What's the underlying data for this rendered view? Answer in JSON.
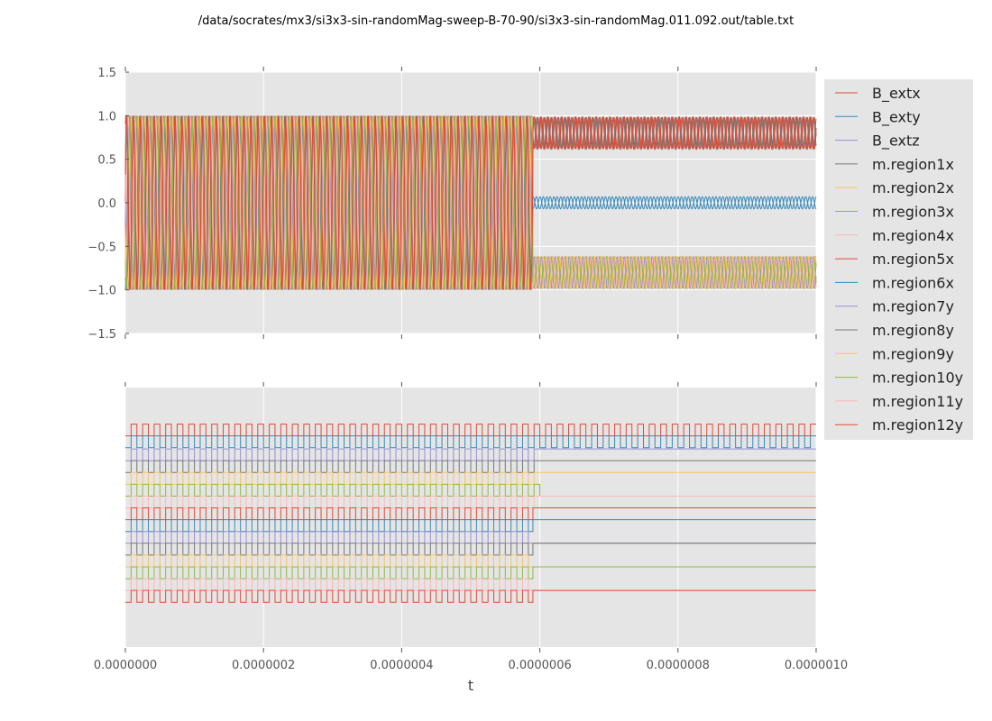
{
  "chart_data": [
    {
      "type": "line",
      "title": "/data/socrates/mx3/si3x3-sin-randomMag-sweep-B-70-90/si3x3-sin-randomMag.011.092.out/table.txt",
      "xlabel": "",
      "ylabel": "",
      "xlim": [
        0,
        1e-06
      ],
      "ylim": [
        -1.5,
        1.5
      ],
      "yticks": [
        {
          "value": 1.5,
          "label": "1.5"
        },
        {
          "value": 1.0,
          "label": "1.0"
        },
        {
          "value": 0.5,
          "label": "0.5"
        },
        {
          "value": 0.0,
          "label": "0.0"
        },
        {
          "value": -0.5,
          "label": "−0.5"
        },
        {
          "value": -1.0,
          "label": "−1.0"
        },
        {
          "value": -1.5,
          "label": "−1.5"
        }
      ],
      "grid": true,
      "switch_time": 5.9e-07,
      "oscillation_cycles": 100,
      "series": [
        {
          "name": "B_extx",
          "color": "#E24A33",
          "before": [
            -1,
            1
          ],
          "after": [
            0.62,
            0.98
          ]
        },
        {
          "name": "B_exty",
          "color": "#348ABD",
          "before": [
            -1,
            1
          ],
          "after": [
            -0.07,
            0.07
          ]
        },
        {
          "name": "B_extz",
          "color": "#988ED5",
          "before": [
            -1,
            1
          ],
          "after": [
            -0.98,
            -0.62
          ]
        },
        {
          "name": "m.region1x",
          "color": "#777777",
          "before": [
            -1,
            1
          ],
          "after": [
            0.62,
            0.98
          ]
        },
        {
          "name": "m.region2x",
          "color": "#FBC15E",
          "before": [
            -1,
            1
          ],
          "after": [
            -0.98,
            -0.62
          ]
        },
        {
          "name": "m.region3x",
          "color": "#8EBA42",
          "before": [
            -1,
            1
          ],
          "after": [
            -0.98,
            -0.62
          ]
        },
        {
          "name": "m.region4x",
          "color": "#FFB5B8",
          "before": [
            -1,
            1
          ],
          "after": [
            -0.98,
            -0.62
          ]
        },
        {
          "name": "m.region5x",
          "color": "#E24A33",
          "before": [
            -1,
            1
          ],
          "after": [
            0.62,
            0.98
          ]
        },
        {
          "name": "m.region6x",
          "color": "#348ABD",
          "before": [
            -1,
            1
          ],
          "after": [
            -0.07,
            0.07
          ]
        },
        {
          "name": "m.region7y",
          "color": "#988ED5",
          "before": [
            -1,
            1
          ],
          "after": [
            -0.98,
            -0.62
          ]
        },
        {
          "name": "m.region8y",
          "color": "#777777",
          "before": [
            -1,
            1
          ],
          "after": [
            0.62,
            0.98
          ]
        },
        {
          "name": "m.region9y",
          "color": "#FBC15E",
          "before": [
            -1,
            1
          ],
          "after": [
            -0.98,
            -0.62
          ]
        },
        {
          "name": "m.region10y",
          "color": "#8EBA42",
          "before": [
            -1,
            1
          ],
          "after": [
            -0.98,
            -0.62
          ]
        },
        {
          "name": "m.region11y",
          "color": "#FFB5B8",
          "before": [
            -1,
            1
          ],
          "after": [
            -0.98,
            -0.62
          ]
        },
        {
          "name": "m.region12y",
          "color": "#E24A33",
          "before": [
            -1,
            1
          ],
          "after": [
            0.62,
            0.98
          ]
        }
      ]
    },
    {
      "type": "line",
      "title": "",
      "xlabel": "t",
      "ylabel": "",
      "xlim": [
        0,
        1e-06
      ],
      "ylim": [
        0,
        22
      ],
      "xticks": [
        {
          "value": 0,
          "label": "0.0000000"
        },
        {
          "value": 2e-07,
          "label": "0.0000002"
        },
        {
          "value": 4e-07,
          "label": "0.0000004"
        },
        {
          "value": 6e-07,
          "label": "0.0000006"
        },
        {
          "value": 8e-07,
          "label": "0.0000008"
        },
        {
          "value": 1e-06,
          "label": "0.0000010"
        }
      ],
      "grid": true,
      "square_cycles": 60,
      "series": [
        {
          "name": "B_extx",
          "color": "#E24A33",
          "low": 17.9,
          "high": 18.9,
          "switch_time": null,
          "final": null
        },
        {
          "name": "B_exty",
          "color": "#348ABD",
          "low": 16.9,
          "high": 17.9,
          "switch_time": null,
          "final": null
        },
        {
          "name": "B_extz",
          "color": "#988ED5",
          "low": 15.8,
          "high": 16.8,
          "switch_time": 6e-07,
          "final": 16.8
        },
        {
          "name": "m.region1x",
          "color": "#777777",
          "low": 14.8,
          "high": 15.8,
          "switch_time": 6e-07,
          "final": 15.8
        },
        {
          "name": "m.region2x",
          "color": "#FBC15E",
          "low": 13.8,
          "high": 14.8,
          "switch_time": 6e-07,
          "final": 14.8
        },
        {
          "name": "m.region3x",
          "color": "#8EBA42",
          "low": 12.8,
          "high": 13.8,
          "switch_time": 6e-07,
          "final": 12.8
        },
        {
          "name": "m.region4x",
          "color": "#FFB5B8",
          "low": 11.8,
          "high": 12.8,
          "switch_time": 6e-07,
          "final": 12.8
        },
        {
          "name": "m.region5x",
          "color": "#E24A33",
          "low": 10.8,
          "high": 11.8,
          "switch_time": 5.9e-07,
          "final": 11.8
        },
        {
          "name": "m.region6x",
          "color": "#348ABD",
          "low": 9.8,
          "high": 10.8,
          "switch_time": 5.9e-07,
          "final": 10.8
        },
        {
          "name": "m.region7y",
          "color": "#988ED5",
          "low": 8.8,
          "high": 9.8,
          "switch_time": 5.9e-07,
          "final": 8.8
        },
        {
          "name": "m.region8y",
          "color": "#777777",
          "low": 7.8,
          "high": 8.8,
          "switch_time": 5.9e-07,
          "final": 8.8
        },
        {
          "name": "m.region9y",
          "color": "#FBC15E",
          "low": 6.8,
          "high": 7.8,
          "switch_time": 5.9e-07,
          "final": 6.8
        },
        {
          "name": "m.region10y",
          "color": "#8EBA42",
          "low": 5.8,
          "high": 6.8,
          "switch_time": 5.9e-07,
          "final": 6.8
        },
        {
          "name": "m.region11y",
          "color": "#FFB5B8",
          "low": 4.8,
          "high": 5.8,
          "switch_time": 5.9e-07,
          "final": 4.8
        },
        {
          "name": "m.region12y",
          "color": "#E24A33",
          "low": 3.8,
          "high": 4.8,
          "switch_time": 5.9e-07,
          "final": 4.8
        }
      ]
    }
  ]
}
